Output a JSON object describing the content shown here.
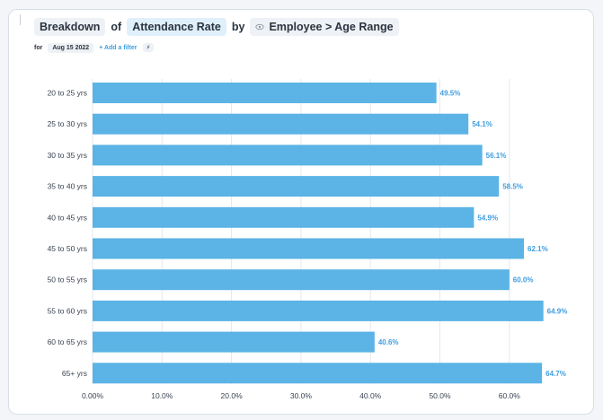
{
  "header": {
    "breakdown": "Breakdown",
    "of": "of",
    "metric": "Attendance Rate",
    "by": "by",
    "dimension": "Employee > Age Range",
    "dimension_icon": "eye-icon"
  },
  "filters": {
    "for_label": "for",
    "date": "Aug 15 2022",
    "add_filter": "+ Add a filter",
    "bolt": "⚡"
  },
  "colors": {
    "bar": "#5bb4e5",
    "label": "#3f9ee0",
    "grid": "#e4e8ee"
  },
  "chart_data": {
    "type": "bar",
    "orientation": "horizontal",
    "categories": [
      "20 to 25 yrs",
      "25 to 30 yrs",
      "30 to 35 yrs",
      "35 to 40 yrs",
      "40 to 45 yrs",
      "45 to 50 yrs",
      "50 to 55 yrs",
      "55 to 60 yrs",
      "60 to 65 yrs",
      "65+ yrs"
    ],
    "values": [
      49.5,
      54.1,
      56.1,
      58.5,
      54.9,
      62.1,
      60.0,
      64.9,
      40.6,
      64.7
    ],
    "data_labels": [
      "49.5%",
      "54.1%",
      "56.1%",
      "58.5%",
      "54.9%",
      "62.1%",
      "60.0%",
      "64.9%",
      "40.6%",
      "64.7%"
    ],
    "x_ticks": [
      0,
      10,
      20,
      30,
      40,
      50,
      60
    ],
    "x_tick_labels": [
      "0.00%",
      "10.0%",
      "20.0%",
      "30.0%",
      "40.0%",
      "50.0%",
      "60.0%"
    ],
    "xlim": [
      0,
      70
    ],
    "grid": true,
    "title": "",
    "xlabel": "",
    "ylabel": ""
  }
}
